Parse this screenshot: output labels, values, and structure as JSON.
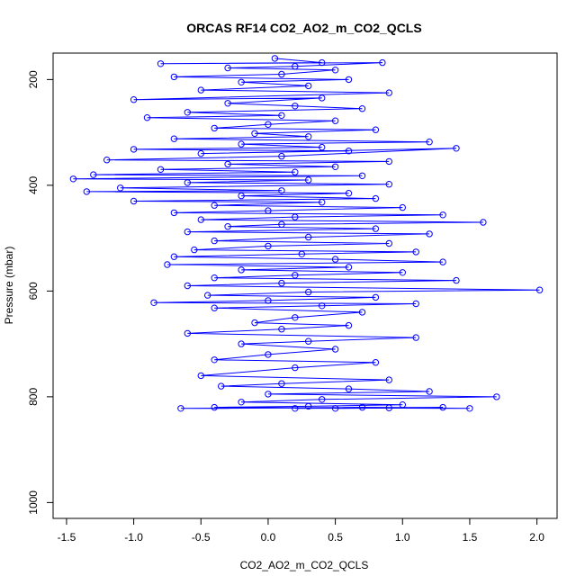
{
  "chart_data": {
    "type": "scatter",
    "title": "ORCAS RF14 CO2_AO2_m_CO2_QCLS",
    "xlabel": "CO2_AO2_m_CO2_QCLS",
    "ylabel": "Pressure (mbar)",
    "xlim": [
      -1.6,
      2.15
    ],
    "ylim": [
      1030,
      150
    ],
    "y_reversed": true,
    "x_ticks": [
      -1.5,
      -1.0,
      -0.5,
      0.0,
      0.5,
      1.0,
      1.5,
      2.0
    ],
    "x_tick_labels": [
      "-1.5",
      "-1.0",
      "-0.5",
      "0.0",
      "0.5",
      "1.0",
      "1.5",
      "2.0"
    ],
    "y_ticks": [
      200,
      400,
      600,
      800,
      1000
    ],
    "y_tick_labels": [
      "200",
      "400",
      "600",
      "800",
      "1000"
    ],
    "marker": "open-circle",
    "connected": true,
    "series_color": "#0000ff",
    "grid": false,
    "series": [
      {
        "points": [
          [
            0.05,
            160
          ],
          [
            0.4,
            168
          ],
          [
            -0.8,
            170
          ],
          [
            0.85,
            168
          ],
          [
            0.2,
            175
          ],
          [
            -0.3,
            178
          ],
          [
            0.5,
            182
          ],
          [
            0.1,
            190
          ],
          [
            -0.7,
            195
          ],
          [
            0.6,
            200
          ],
          [
            -0.2,
            205
          ],
          [
            0.3,
            212
          ],
          [
            -0.5,
            220
          ],
          [
            0.9,
            225
          ],
          [
            -1.0,
            238
          ],
          [
            0.4,
            235
          ],
          [
            -0.3,
            245
          ],
          [
            0.2,
            250
          ],
          [
            0.7,
            255
          ],
          [
            -0.6,
            262
          ],
          [
            0.1,
            268
          ],
          [
            -0.9,
            272
          ],
          [
            0.5,
            278
          ],
          [
            0.0,
            285
          ],
          [
            -0.4,
            292
          ],
          [
            0.8,
            295
          ],
          [
            -0.1,
            302
          ],
          [
            0.3,
            308
          ],
          [
            -0.7,
            312
          ],
          [
            1.2,
            318
          ],
          [
            -0.2,
            322
          ],
          [
            0.4,
            328
          ],
          [
            -1.0,
            332
          ],
          [
            0.6,
            335
          ],
          [
            -0.5,
            340
          ],
          [
            1.4,
            330
          ],
          [
            0.1,
            345
          ],
          [
            -1.2,
            352
          ],
          [
            0.9,
            355
          ],
          [
            -0.3,
            360
          ],
          [
            0.5,
            365
          ],
          [
            -0.8,
            370
          ],
          [
            0.2,
            375
          ],
          [
            -1.3,
            380
          ],
          [
            0.7,
            382
          ],
          [
            -1.45,
            388
          ],
          [
            0.3,
            390
          ],
          [
            -0.6,
            395
          ],
          [
            0.9,
            398
          ],
          [
            -1.1,
            405
          ],
          [
            0.1,
            410
          ],
          [
            -1.35,
            412
          ],
          [
            0.6,
            415
          ],
          [
            -0.2,
            420
          ],
          [
            0.8,
            425
          ],
          [
            -1.0,
            430
          ],
          [
            0.4,
            432
          ],
          [
            -0.4,
            438
          ],
          [
            1.0,
            442
          ],
          [
            0.0,
            448
          ],
          [
            -0.7,
            452
          ],
          [
            1.3,
            456
          ],
          [
            0.2,
            460
          ],
          [
            -0.5,
            465
          ],
          [
            1.6,
            470
          ],
          [
            0.1,
            474
          ],
          [
            -0.3,
            478
          ],
          [
            0.8,
            482
          ],
          [
            -0.6,
            488
          ],
          [
            1.2,
            492
          ],
          [
            0.3,
            498
          ],
          [
            -0.4,
            505
          ],
          [
            0.9,
            510
          ],
          [
            0.0,
            515
          ],
          [
            -0.55,
            522
          ],
          [
            1.1,
            526
          ],
          [
            0.25,
            530
          ],
          [
            -0.7,
            535
          ],
          [
            0.5,
            540
          ],
          [
            1.3,
            545
          ],
          [
            -0.75,
            550
          ],
          [
            0.6,
            555
          ],
          [
            -0.2,
            560
          ],
          [
            1.0,
            565
          ],
          [
            0.2,
            570
          ],
          [
            -0.4,
            575
          ],
          [
            1.4,
            580
          ],
          [
            0.1,
            585
          ],
          [
            -0.6,
            590
          ],
          [
            2.02,
            598
          ],
          [
            0.3,
            602
          ],
          [
            -0.45,
            608
          ],
          [
            0.8,
            612
          ],
          [
            0.0,
            618
          ],
          [
            -0.85,
            622
          ],
          [
            1.1,
            624
          ],
          [
            0.4,
            628
          ],
          [
            -0.4,
            632
          ],
          [
            0.7,
            640
          ],
          [
            0.2,
            650
          ],
          [
            -0.1,
            660
          ],
          [
            0.6,
            665
          ],
          [
            0.1,
            672
          ],
          [
            -0.6,
            680
          ],
          [
            1.1,
            688
          ],
          [
            0.3,
            695
          ],
          [
            -0.2,
            700
          ],
          [
            0.5,
            710
          ],
          [
            0.0,
            720
          ],
          [
            -0.4,
            730
          ],
          [
            0.8,
            735
          ],
          [
            0.2,
            745
          ],
          [
            -0.5,
            760
          ],
          [
            0.9,
            768
          ],
          [
            0.1,
            775
          ],
          [
            -0.35,
            780
          ],
          [
            0.6,
            785
          ],
          [
            1.2,
            790
          ],
          [
            0.0,
            795
          ],
          [
            1.7,
            800
          ],
          [
            0.4,
            805
          ],
          [
            -0.2,
            810
          ],
          [
            1.0,
            815
          ],
          [
            0.3,
            818
          ],
          [
            -0.4,
            820
          ],
          [
            1.5,
            822
          ],
          [
            0.7,
            820
          ],
          [
            -0.65,
            822
          ],
          [
            1.3,
            820
          ],
          [
            0.5,
            822
          ],
          [
            0.9,
            821
          ],
          [
            0.2,
            822
          ]
        ]
      }
    ]
  }
}
